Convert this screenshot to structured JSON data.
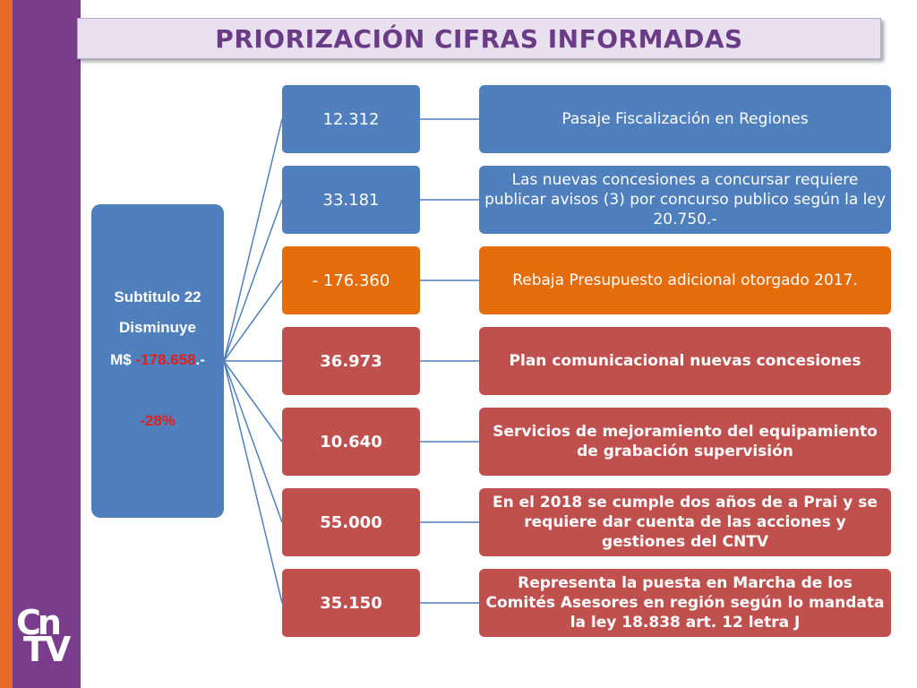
{
  "title": "PRIORIZACIÓN CIFRAS INFORMADAS",
  "logo": {
    "line1": "Cn",
    "line2": "TV"
  },
  "root": {
    "line1": "Subtitulo 22",
    "line2": "Disminuye",
    "currency_prefix": "M$ ",
    "amount": "-178.658",
    "amount_suffix": ".-",
    "percent": "-28%"
  },
  "items": [
    {
      "amount": "12.312",
      "description": "Pasaje  Fiscalización en Regiones",
      "color": "#4f7fbd"
    },
    {
      "amount": "33.181",
      "description": "Las nuevas concesiones a concursar requiere publicar avisos (3) por concurso publico según la ley 20.750.-",
      "color": "#4f7fbd"
    },
    {
      "amount": "-   176.360",
      "description": "Rebaja Presupuesto adicional otorgado 2017.",
      "color": "#e46c0a"
    },
    {
      "amount": "36.973",
      "description": "Plan comunicacional nuevas concesiones",
      "color": "#c0504d"
    },
    {
      "amount": "10.640",
      "description": "Servicios de mejoramiento del equipamiento de grabación supervisión",
      "color": "#c0504d"
    },
    {
      "amount": "55.000",
      "description": "En el 2018 se cumple dos años de a Prai y se requiere dar cuenta de las acciones y gestiones del CNTV",
      "color": "#c0504d"
    },
    {
      "amount": "35.150",
      "description": "Representa la puesta en Marcha de los Comités Asesores en región según lo mandata la ley 18.838 art. 12 letra J",
      "color": "#c0504d"
    }
  ]
}
